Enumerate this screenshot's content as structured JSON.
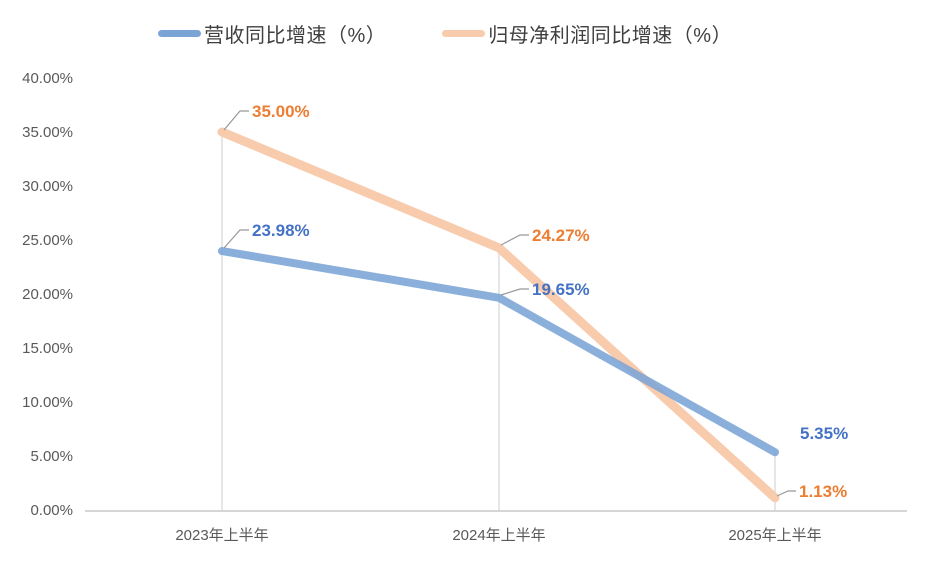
{
  "chart_data": {
    "type": "line",
    "title": "",
    "categories": [
      "2023年上半年",
      "2024年上半年",
      "2025年上半年"
    ],
    "series": [
      {
        "name": "营收同比增速（%）",
        "values": [
          23.98,
          19.65,
          5.35
        ],
        "labels": [
          "23.98%",
          "19.65%",
          "5.35%"
        ],
        "line_color": "#7BA4D6",
        "label_color": "#4472C4"
      },
      {
        "name": "归母净利润同比增速（%）",
        "values": [
          35.0,
          24.27,
          1.13
        ],
        "labels": [
          "35.00%",
          "24.27%",
          "1.13%"
        ],
        "line_color": "#F8CBAD",
        "label_color": "#ED7D31"
      }
    ],
    "y_axis": {
      "min": 0,
      "max": 40,
      "step": 5,
      "tick_labels": [
        "40.00%",
        "35.00%",
        "30.00%",
        "25.00%",
        "20.00%",
        "15.00%",
        "10.00%",
        "5.00%",
        "0.00%"
      ]
    },
    "x_axis": {
      "label": ""
    },
    "legend_position": "top",
    "grid": "vertical-drop-lines-only",
    "colors": {
      "axis_text": "#595959",
      "axis_line": "#D6D6D6",
      "drop_line": "#D9D9D9",
      "leader_line": "#999999",
      "legend_text": "#404040",
      "background": "#FFFFFF"
    }
  }
}
